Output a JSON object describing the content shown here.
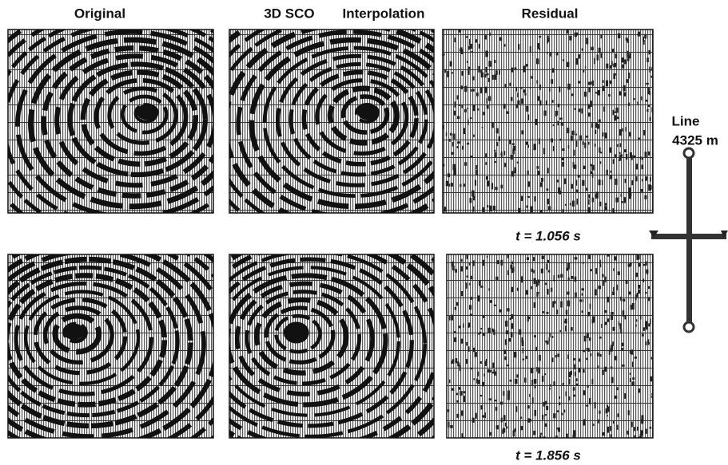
{
  "column_headers": {
    "original": "Original",
    "method": "3D SCO",
    "interpolation": "Interpolation",
    "residual": "Residual"
  },
  "time_labels": [
    "t = 1.056 s",
    "t = 1.856 s"
  ],
  "line_label": {
    "title": "Line",
    "distance": "4325 m"
  }
}
